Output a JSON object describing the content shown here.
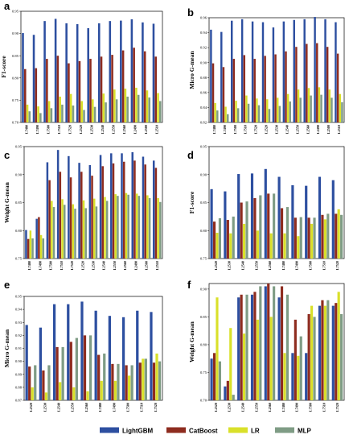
{
  "legend": [
    {
      "name": "LightGBM",
      "color": "#2D4FA0"
    },
    {
      "name": "CatBoost",
      "color": "#8E2C1F"
    },
    {
      "name": "LR",
      "color": "#D9E02A"
    },
    {
      "name": "MLP",
      "color": "#7F9C85"
    }
  ],
  "chart_data": [
    {
      "panel": "a",
      "type": "bar",
      "ylabel": "F1-score",
      "ylim": [
        0.7,
        0.95
      ],
      "yticks": [
        "0.70",
        "0.75",
        "0.80",
        "0.85",
        "0.90",
        "0.95"
      ],
      "categories": [
        "L7480",
        "L7490",
        "L7500",
        "L7510",
        "L7520",
        "L2520",
        "L2530",
        "L2540",
        "L2550",
        "L2560",
        "L2490",
        "L2500",
        "L2510"
      ],
      "series": [
        {
          "name": "LightGBM",
          "values": [
            0.901,
            0.897,
            0.928,
            0.933,
            0.923,
            0.921,
            0.912,
            0.923,
            0.928,
            0.929,
            0.932,
            0.925,
            0.922
          ]
        },
        {
          "name": "CatBoost",
          "values": [
            0.82,
            0.822,
            0.843,
            0.85,
            0.833,
            0.838,
            0.843,
            0.848,
            0.852,
            0.862,
            0.868,
            0.86,
            0.848
          ]
        },
        {
          "name": "LR",
          "values": [
            0.74,
            0.736,
            0.748,
            0.758,
            0.764,
            0.748,
            0.752,
            0.765,
            0.774,
            0.776,
            0.778,
            0.772,
            0.766
          ]
        },
        {
          "name": "MLP",
          "values": [
            0.725,
            0.721,
            0.732,
            0.74,
            0.738,
            0.728,
            0.735,
            0.745,
            0.752,
            0.758,
            0.762,
            0.756,
            0.748
          ]
        }
      ]
    },
    {
      "panel": "b",
      "type": "bar",
      "ylabel": "Micro G-mean",
      "ylim": [
        0.82,
        0.96
      ],
      "yticks": [
        "0.82",
        "0.84",
        "0.86",
        "0.88",
        "0.90",
        "0.92",
        "0.94",
        "0.96"
      ],
      "categories": [
        "L7480",
        "L7490",
        "L7500",
        "L7510",
        "L7520",
        "L2520",
        "L2530",
        "L2540",
        "L2550",
        "L2560",
        "L2490",
        "L2500",
        "L2510"
      ],
      "series": [
        {
          "name": "LightGBM",
          "values": [
            0.944,
            0.941,
            0.956,
            0.958,
            0.955,
            0.954,
            0.947,
            0.955,
            0.957,
            0.958,
            0.961,
            0.958,
            0.954
          ]
        },
        {
          "name": "CatBoost",
          "values": [
            0.899,
            0.894,
            0.905,
            0.91,
            0.905,
            0.909,
            0.911,
            0.915,
            0.921,
            0.925,
            0.926,
            0.921,
            0.912
          ]
        },
        {
          "name": "LR",
          "values": [
            0.846,
            0.841,
            0.849,
            0.856,
            0.852,
            0.851,
            0.853,
            0.858,
            0.864,
            0.866,
            0.867,
            0.864,
            0.858
          ]
        },
        {
          "name": "MLP",
          "values": [
            0.836,
            0.831,
            0.839,
            0.845,
            0.843,
            0.838,
            0.842,
            0.848,
            0.853,
            0.856,
            0.857,
            0.853,
            0.847
          ]
        }
      ]
    },
    {
      "panel": "c",
      "type": "bar",
      "ylabel": "Weight G-mean",
      "ylim": [
        0.75,
        0.95
      ],
      "yticks": [
        "0.75",
        "0.80",
        "0.85",
        "0.90",
        "0.95"
      ],
      "categories": [
        "L7480",
        "L7490",
        "L7500",
        "L7510",
        "L7520",
        "L2520",
        "L2530",
        "L2540",
        "L2550",
        "L2560",
        "L2490",
        "L2500",
        "L2510"
      ],
      "series": [
        {
          "name": "LightGBM",
          "values": [
            0.801,
            0.821,
            0.922,
            0.944,
            0.933,
            0.921,
            0.917,
            0.935,
            0.938,
            0.938,
            0.94,
            0.932,
            0.925
          ]
        },
        {
          "name": "CatBoost",
          "values": [
            0.785,
            0.824,
            0.89,
            0.905,
            0.895,
            0.905,
            0.898,
            0.915,
            0.92,
            0.923,
            0.925,
            0.918,
            0.912
          ]
        },
        {
          "name": "LR",
          "values": [
            0.8,
            0.792,
            0.853,
            0.856,
            0.847,
            0.854,
            0.857,
            0.86,
            0.865,
            0.867,
            0.866,
            0.863,
            0.858
          ]
        },
        {
          "name": "MLP",
          "values": [
            0.786,
            0.786,
            0.842,
            0.846,
            0.839,
            0.84,
            0.843,
            0.853,
            0.862,
            0.864,
            0.862,
            0.858,
            0.851
          ]
        }
      ]
    },
    {
      "panel": "d",
      "type": "bar",
      "ylabel": "F1-score",
      "ylim": [
        0.75,
        0.95
      ],
      "yticks": [
        "0.75",
        "0.80",
        "0.85",
        "0.90",
        "0.95"
      ],
      "categories": [
        "L2520",
        "L2530",
        "L2540",
        "L2550",
        "L2560",
        "L7480",
        "L7490",
        "L7500",
        "L7510",
        "L7520"
      ],
      "series": [
        {
          "name": "LightGBM",
          "values": [
            0.874,
            0.87,
            0.901,
            0.902,
            0.91,
            0.896,
            0.881,
            0.88,
            0.896,
            0.89
          ]
        },
        {
          "name": "CatBoost",
          "values": [
            0.816,
            0.819,
            0.85,
            0.858,
            0.866,
            0.84,
            0.823,
            0.823,
            0.828,
            0.83
          ]
        },
        {
          "name": "LR",
          "values": [
            0.796,
            0.795,
            0.812,
            0.8,
            0.795,
            0.795,
            0.79,
            0.812,
            0.82,
            0.838
          ]
        },
        {
          "name": "MLP",
          "values": [
            0.822,
            0.825,
            0.852,
            0.863,
            0.866,
            0.842,
            0.824,
            0.823,
            0.83,
            0.828
          ]
        }
      ]
    },
    {
      "panel": "e",
      "type": "bar",
      "ylabel": "Micro G-mean",
      "ylim": [
        0.87,
        0.95
      ],
      "yticks": [
        "0.87",
        "0.88",
        "0.89",
        "0.90",
        "0.91",
        "0.92",
        "0.93",
        "0.94",
        "0.95"
      ],
      "categories": [
        "L2520",
        "L2530",
        "L2540",
        "L2550",
        "L2560",
        "L7480",
        "L7490",
        "L7500",
        "L7510",
        "L7520"
      ],
      "series": [
        {
          "name": "LightGBM",
          "values": [
            0.928,
            0.926,
            0.944,
            0.944,
            0.946,
            0.939,
            0.935,
            0.934,
            0.939,
            0.938
          ]
        },
        {
          "name": "CatBoost",
          "values": [
            0.896,
            0.893,
            0.911,
            0.915,
            0.92,
            0.905,
            0.898,
            0.897,
            0.899,
            0.899
          ]
        },
        {
          "name": "LR",
          "values": [
            0.88,
            0.876,
            0.884,
            0.88,
            0.877,
            0.885,
            0.885,
            0.889,
            0.902,
            0.906
          ]
        },
        {
          "name": "MLP",
          "values": [
            0.897,
            0.897,
            0.911,
            0.918,
            0.92,
            0.906,
            0.898,
            0.897,
            0.902,
            0.9
          ]
        }
      ]
    },
    {
      "panel": "f",
      "type": "bar",
      "ylabel": "Weight G-mean",
      "ylim": [
        0.7,
        0.91
      ],
      "yticks": [
        "0.70",
        "0.75",
        "0.80",
        "0.85",
        "0.90"
      ],
      "categories": [
        "L2520",
        "L2530",
        "L2540",
        "L2550",
        "L2560",
        "L7480",
        "L7490",
        "L7500",
        "L7510",
        "L7520"
      ],
      "series": [
        {
          "name": "LightGBM",
          "values": [
            0.775,
            0.725,
            0.885,
            0.89,
            0.905,
            0.885,
            0.785,
            0.785,
            0.87,
            0.87
          ]
        },
        {
          "name": "CatBoost",
          "values": [
            0.785,
            0.735,
            0.89,
            0.895,
            0.91,
            0.905,
            0.845,
            0.855,
            0.88,
            0.875
          ]
        },
        {
          "name": "LR",
          "values": [
            0.885,
            0.83,
            0.82,
            0.845,
            0.85,
            0.785,
            0.78,
            0.87,
            0.87,
            0.895
          ]
        },
        {
          "name": "MLP",
          "values": [
            0.77,
            0.71,
            0.89,
            0.905,
            0.905,
            0.89,
            0.815,
            0.85,
            0.88,
            0.855
          ]
        }
      ]
    }
  ]
}
